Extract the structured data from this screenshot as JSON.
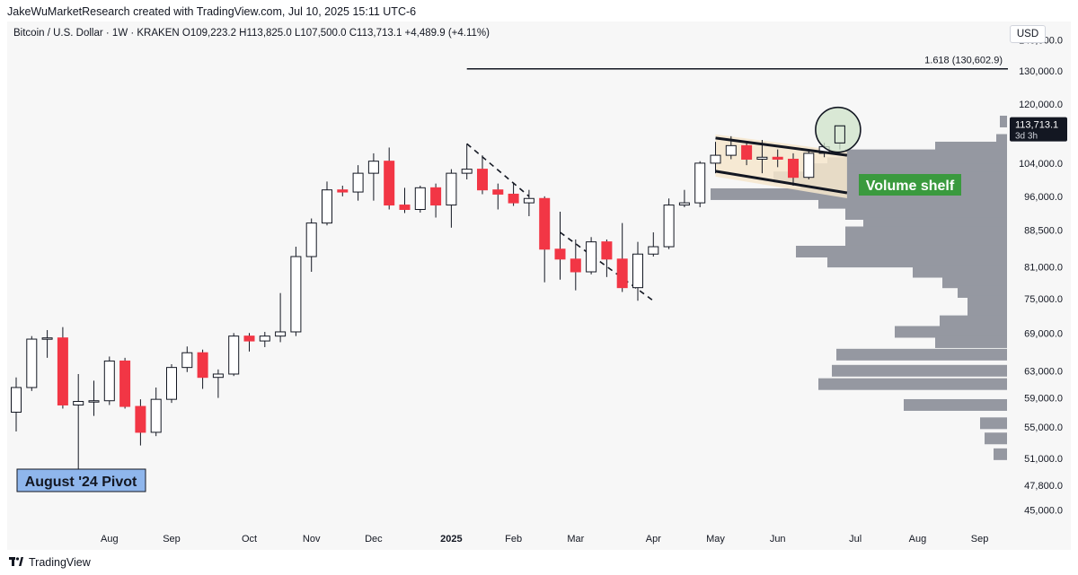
{
  "header": {
    "attribution": "JakeWuMarketResearch created with TradingView.com, Jul 10, 2025 15:11 UTC-6"
  },
  "symbol_info": {
    "text": "Bitcoin / U.S. Dollar · 1W · KRAKEN   O109,223.2  H113,825.0  L107,500.0  C113,713.1  +4,489.9 (+4.11%)"
  },
  "currency_button": "USD",
  "footer": {
    "brand": "TradingView"
  },
  "colors": {
    "up_body": "#ffffff",
    "down_body": "#f23645",
    "wick": "#131722",
    "volume_bar": "#9598a1",
    "annotation_green": "#3a9a3e",
    "annotation_blue_bg": "#8fb6ec",
    "circle_fill": "#cfe3c9"
  },
  "chart_data": {
    "type": "candlestick",
    "y_scale": "log",
    "ylim": [
      43000,
      145000
    ],
    "y_ticks": [
      "140,000.0",
      "130,000.0",
      "120,000.0",
      "104,000.0",
      "96,000.0",
      "88,500.0",
      "81,000.0",
      "75,000.0",
      "69,000.0",
      "63,000.0",
      "59,000.0",
      "55,000.0",
      "51,000.0",
      "47,800.0",
      "45,000.0"
    ],
    "y_tick_values": [
      140000,
      130000,
      120000,
      104000,
      96000,
      88500,
      81000,
      75000,
      69000,
      63000,
      59000,
      55000,
      51000,
      47800,
      45000
    ],
    "x_ticks": [
      "Aug",
      "Sep",
      "Oct",
      "Nov",
      "Dec",
      "2025",
      "Feb",
      "Mar",
      "Apr",
      "May",
      "Jun",
      "Jul",
      "Aug",
      "Sep"
    ],
    "x_tick_dates": [
      "2024-07-29",
      "2024-08-26",
      "2024-09-30",
      "2024-10-28",
      "2024-11-25",
      "2024-12-30",
      "2025-01-27",
      "2025-02-24",
      "2025-03-31",
      "2025-04-28",
      "2025-05-26",
      "2025-06-30",
      "2025-07-28",
      "2025-08-25"
    ],
    "candles": [
      {
        "date": "2024-06-17",
        "o": 57000,
        "h": 62000,
        "l": 54400,
        "c": 60500
      },
      {
        "date": "2024-06-24",
        "o": 60500,
        "h": 68500,
        "l": 60000,
        "c": 68000
      },
      {
        "date": "2024-07-01",
        "o": 68000,
        "h": 69500,
        "l": 65000,
        "c": 68200
      },
      {
        "date": "2024-07-08",
        "o": 68200,
        "h": 70000,
        "l": 57500,
        "c": 58000
      },
      {
        "date": "2024-07-15",
        "o": 58000,
        "h": 62500,
        "l": 49000,
        "c": 58500
      },
      {
        "date": "2024-07-22",
        "o": 58500,
        "h": 61500,
        "l": 56500,
        "c": 58600
      },
      {
        "date": "2024-07-29",
        "o": 58600,
        "h": 65200,
        "l": 58000,
        "c": 64500
      },
      {
        "date": "2024-08-05",
        "o": 64500,
        "h": 65000,
        "l": 57500,
        "c": 57800
      },
      {
        "date": "2024-08-12",
        "o": 57800,
        "h": 58800,
        "l": 52600,
        "c": 54300
      },
      {
        "date": "2024-08-19",
        "o": 54300,
        "h": 60500,
        "l": 53800,
        "c": 58800
      },
      {
        "date": "2024-08-26",
        "o": 58800,
        "h": 64000,
        "l": 58300,
        "c": 63500
      },
      {
        "date": "2024-09-02",
        "o": 63500,
        "h": 66800,
        "l": 62800,
        "c": 65800
      },
      {
        "date": "2024-09-09",
        "o": 65800,
        "h": 66300,
        "l": 60300,
        "c": 62000
      },
      {
        "date": "2024-09-16",
        "o": 62000,
        "h": 63200,
        "l": 59000,
        "c": 62500
      },
      {
        "date": "2024-09-23",
        "o": 62500,
        "h": 69000,
        "l": 62200,
        "c": 68500
      },
      {
        "date": "2024-09-30",
        "o": 68500,
        "h": 69000,
        "l": 66000,
        "c": 67700
      },
      {
        "date": "2024-10-07",
        "o": 67700,
        "h": 69200,
        "l": 66700,
        "c": 68500
      },
      {
        "date": "2024-10-14",
        "o": 68500,
        "h": 76000,
        "l": 67500,
        "c": 69200
      },
      {
        "date": "2024-10-21",
        "o": 69200,
        "h": 85000,
        "l": 68500,
        "c": 83000
      },
      {
        "date": "2024-10-28",
        "o": 83000,
        "h": 91000,
        "l": 80000,
        "c": 90000
      },
      {
        "date": "2024-11-04",
        "o": 90000,
        "h": 99500,
        "l": 89500,
        "c": 97500
      },
      {
        "date": "2024-11-11",
        "o": 97500,
        "h": 98500,
        "l": 96000,
        "c": 97000
      },
      {
        "date": "2024-11-18",
        "o": 97000,
        "h": 103500,
        "l": 95000,
        "c": 101500
      },
      {
        "date": "2024-11-25",
        "o": 101500,
        "h": 106500,
        "l": 95000,
        "c": 104500
      },
      {
        "date": "2024-12-02",
        "o": 104500,
        "h": 108000,
        "l": 93000,
        "c": 94000
      },
      {
        "date": "2024-12-09",
        "o": 94000,
        "h": 98000,
        "l": 92200,
        "c": 93000
      },
      {
        "date": "2024-12-16",
        "o": 93000,
        "h": 98500,
        "l": 92300,
        "c": 98000
      },
      {
        "date": "2024-12-23",
        "o": 98000,
        "h": 99000,
        "l": 91200,
        "c": 94000
      },
      {
        "date": "2024-12-30",
        "o": 94000,
        "h": 102500,
        "l": 89000,
        "c": 101500
      },
      {
        "date": "2025-01-06",
        "o": 101500,
        "h": 109000,
        "l": 100000,
        "c": 102500
      },
      {
        "date": "2025-01-13",
        "o": 102500,
        "h": 106000,
        "l": 96500,
        "c": 97500
      },
      {
        "date": "2025-01-20",
        "o": 97500,
        "h": 99000,
        "l": 93000,
        "c": 96500
      },
      {
        "date": "2025-01-27",
        "o": 96500,
        "h": 99000,
        "l": 93800,
        "c": 94500
      },
      {
        "date": "2025-02-03",
        "o": 94500,
        "h": 97500,
        "l": 91500,
        "c": 95500
      },
      {
        "date": "2025-02-10",
        "o": 95500,
        "h": 96000,
        "l": 78000,
        "c": 84500
      },
      {
        "date": "2025-02-17",
        "o": 84500,
        "h": 92500,
        "l": 78500,
        "c": 82500
      },
      {
        "date": "2025-02-24",
        "o": 82500,
        "h": 86500,
        "l": 76500,
        "c": 80000
      },
      {
        "date": "2025-03-03",
        "o": 80000,
        "h": 87000,
        "l": 79500,
        "c": 86000
      },
      {
        "date": "2025-03-10",
        "o": 86000,
        "h": 86500,
        "l": 79000,
        "c": 82500
      },
      {
        "date": "2025-03-17",
        "o": 82500,
        "h": 90000,
        "l": 76200,
        "c": 77000
      },
      {
        "date": "2025-03-24",
        "o": 77000,
        "h": 86000,
        "l": 74600,
        "c": 83500
      },
      {
        "date": "2025-03-31",
        "o": 83500,
        "h": 88000,
        "l": 83000,
        "c": 85000
      },
      {
        "date": "2025-04-07",
        "o": 85000,
        "h": 95500,
        "l": 84500,
        "c": 94000
      },
      {
        "date": "2025-04-14",
        "o": 94000,
        "h": 97500,
        "l": 93500,
        "c": 94500
      },
      {
        "date": "2025-04-21",
        "o": 94500,
        "h": 104500,
        "l": 93500,
        "c": 104000
      },
      {
        "date": "2025-04-28",
        "o": 104000,
        "h": 109500,
        "l": 101500,
        "c": 106000
      },
      {
        "date": "2025-05-05",
        "o": 106000,
        "h": 111000,
        "l": 105000,
        "c": 108500
      },
      {
        "date": "2025-05-12",
        "o": 108500,
        "h": 109500,
        "l": 103500,
        "c": 105000
      },
      {
        "date": "2025-05-19",
        "o": 105000,
        "h": 110000,
        "l": 101500,
        "c": 105500
      },
      {
        "date": "2025-05-26",
        "o": 105500,
        "h": 107500,
        "l": 103000,
        "c": 105000
      },
      {
        "date": "2025-06-02",
        "o": 105000,
        "h": 106500,
        "l": 98500,
        "c": 100500
      },
      {
        "date": "2025-06-09",
        "o": 100500,
        "h": 107500,
        "l": 100000,
        "c": 106500
      },
      {
        "date": "2025-06-16",
        "o": 106500,
        "h": 109200,
        "l": 105500,
        "c": 108200
      },
      {
        "date": "2025-06-23",
        "o": 109200,
        "h": 113825,
        "l": 107500,
        "c": 113713.1
      }
    ],
    "volume_profile": [
      {
        "price": 115000,
        "width": 8
      },
      {
        "price": 110000,
        "width": 12
      },
      {
        "price": 108000,
        "width": 80
      },
      {
        "price": 106000,
        "width": 180
      },
      {
        "price": 104000,
        "width": 200
      },
      {
        "price": 102500,
        "width": 215
      },
      {
        "price": 100500,
        "width": 260
      },
      {
        "price": 98500,
        "width": 230
      },
      {
        "price": 96500,
        "width": 330
      },
      {
        "price": 94500,
        "width": 210
      },
      {
        "price": 92000,
        "width": 180
      },
      {
        "price": 90000,
        "width": 160
      },
      {
        "price": 88000,
        "width": 180
      },
      {
        "price": 86000,
        "width": 180
      },
      {
        "price": 84000,
        "width": 235
      },
      {
        "price": 82000,
        "width": 200
      },
      {
        "price": 80000,
        "width": 105
      },
      {
        "price": 78000,
        "width": 72
      },
      {
        "price": 76200,
        "width": 55
      },
      {
        "price": 74500,
        "width": 44
      },
      {
        "price": 72800,
        "width": 44
      },
      {
        "price": 71000,
        "width": 75
      },
      {
        "price": 69200,
        "width": 125
      },
      {
        "price": 67500,
        "width": 80
      },
      {
        "price": 65500,
        "width": 190
      },
      {
        "price": 63000,
        "width": 195
      },
      {
        "price": 61000,
        "width": 210
      },
      {
        "price": 58000,
        "width": 115
      },
      {
        "price": 55500,
        "width": 30
      },
      {
        "price": 53500,
        "width": 25
      },
      {
        "price": 51500,
        "width": 15
      }
    ],
    "fib_level": {
      "label": "1.618 (130,602.9)",
      "price": 130602.9,
      "start_date": "2025-01-06"
    },
    "last_price_label": "113,713.1",
    "countdown_label": "3d 3h",
    "annotations": {
      "pivot": "August '24 Pivot",
      "volume_shelf": "Volume shelf"
    },
    "flag_lines": [
      {
        "from": {
          "date": "2025-04-28",
          "price": 110500
        },
        "to": {
          "date": "2025-06-23",
          "price": 106000
        }
      },
      {
        "from": {
          "date": "2025-04-28",
          "price": 102000
        },
        "to": {
          "date": "2025-06-23",
          "price": 96800
        }
      }
    ],
    "dashed_trend": [
      {
        "from": {
          "date": "2025-01-06",
          "price": 109000
        },
        "to": {
          "date": "2025-02-03",
          "price": 96000
        }
      },
      {
        "from": {
          "date": "2025-02-17",
          "price": 88000
        },
        "to": {
          "date": "2025-03-31",
          "price": 74600
        }
      }
    ]
  }
}
